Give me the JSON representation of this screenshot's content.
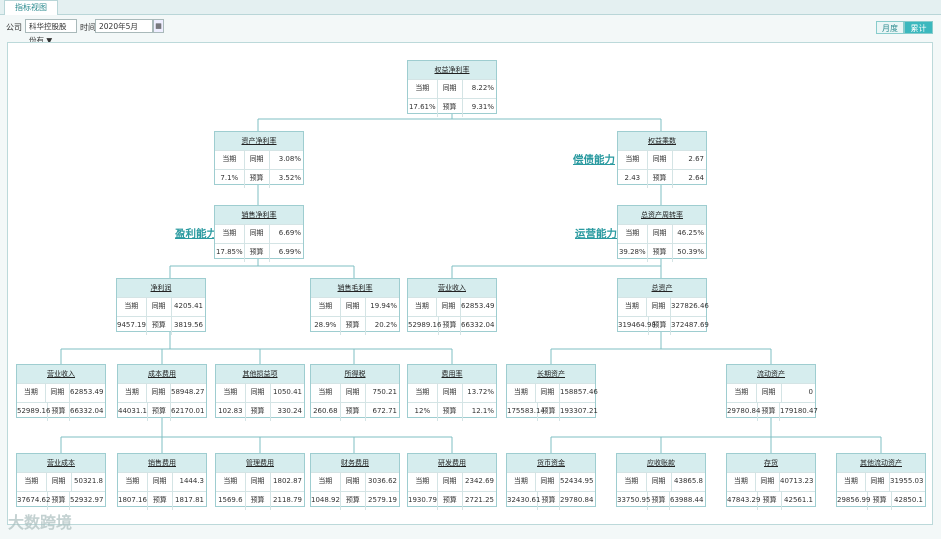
{
  "tab": "指标视图",
  "toolbar": {
    "company_label": "公司",
    "company_value": "科华控股股份有 ▼",
    "time_label": "时间",
    "time_value": "2020年5月",
    "calendar_glyph": "▦",
    "monthly_label": "月度",
    "cumulative_label": "累计"
  },
  "sections": {
    "solvency": "偿债能力",
    "profitability": "盈利能力",
    "operating": "运营能力"
  },
  "logo_text": "大数跨境",
  "nodes": {
    "roe": {
      "title": "权益净利率",
      "r1": [
        "当期",
        "同期",
        "8.22%"
      ],
      "r2": [
        "17.61%",
        "预算",
        "9.31%"
      ]
    },
    "roa": {
      "title": "资产净利率",
      "r1": [
        "当期",
        "同期",
        "3.08%"
      ],
      "r2": [
        "7.1%",
        "预算",
        "3.52%"
      ]
    },
    "em": {
      "title": "权益乘数",
      "r1": [
        "当期",
        "同期",
        "2.67"
      ],
      "r2": [
        "2.43",
        "预算",
        "2.64"
      ]
    },
    "npm": {
      "title": "销售净利率",
      "r1": [
        "当期",
        "同期",
        "6.69%"
      ],
      "r2": [
        "17.85%",
        "预算",
        "6.99%"
      ]
    },
    "tat": {
      "title": "总资产周转率",
      "r1": [
        "当期",
        "同期",
        "46.25%"
      ],
      "r2": [
        "39.28%",
        "预算",
        "50.39%"
      ]
    },
    "np": {
      "title": "净利润",
      "r1": [
        "当期",
        "同期",
        "4205.41"
      ],
      "r2": [
        "9457.19",
        "预算",
        "3819.56"
      ]
    },
    "gm": {
      "title": "销售毛利率",
      "r1": [
        "当期",
        "同期",
        "19.94%"
      ],
      "r2": [
        "28.9%",
        "预算",
        "20.2%"
      ]
    },
    "rev1": {
      "title": "营业收入",
      "r1": [
        "当期",
        "同期",
        "62853.49"
      ],
      "r2": [
        "52989.16",
        "预算",
        "66332.04"
      ]
    },
    "ta": {
      "title": "总资产",
      "r1": [
        "当期",
        "同期",
        "327826.46"
      ],
      "r2": [
        "319464.98",
        "预算",
        "372487.69"
      ]
    },
    "rev2": {
      "title": "营业收入",
      "r1": [
        "当期",
        "同期",
        "62853.49"
      ],
      "r2": [
        "52989.16",
        "预算",
        "66332.04"
      ]
    },
    "cost": {
      "title": "成本费用",
      "r1": [
        "当期",
        "同期",
        "58948.27"
      ],
      "r2": [
        "44031.1",
        "预算",
        "62170.01"
      ]
    },
    "other": {
      "title": "其他损益项",
      "r1": [
        "当期",
        "同期",
        "1050.41"
      ],
      "r2": [
        "102.83",
        "预算",
        "330.24"
      ]
    },
    "tax": {
      "title": "所得税",
      "r1": [
        "当期",
        "同期",
        "750.21"
      ],
      "r2": [
        "260.68",
        "预算",
        "672.71"
      ]
    },
    "fee": {
      "title": "费用率",
      "r1": [
        "当期",
        "同期",
        "13.72%"
      ],
      "r2": [
        "12%",
        "预算",
        "12.1%"
      ]
    },
    "nca": {
      "title": "长期资产",
      "r1": [
        "当期",
        "同期",
        "158857.46"
      ],
      "r2": [
        "175583.14",
        "预算",
        "193307.21"
      ]
    },
    "ca": {
      "title": "流动资产",
      "r1": [
        "当期",
        "同期",
        "0"
      ],
      "r2": [
        "29780.84",
        "预算",
        "179180.47"
      ]
    },
    "opcost": {
      "title": "营业成本",
      "r1": [
        "当期",
        "同期",
        "50321.8"
      ],
      "r2": [
        "37674.62",
        "预算",
        "52932.97"
      ]
    },
    "sellexp": {
      "title": "销售费用",
      "r1": [
        "当期",
        "同期",
        "1444.3"
      ],
      "r2": [
        "1807.16",
        "预算",
        "1817.81"
      ]
    },
    "admexp": {
      "title": "管理费用",
      "r1": [
        "当期",
        "同期",
        "1802.87"
      ],
      "r2": [
        "1569.6",
        "预算",
        "2118.79"
      ]
    },
    "finexp": {
      "title": "财务费用",
      "r1": [
        "当期",
        "同期",
        "3036.62"
      ],
      "r2": [
        "1048.92",
        "预算",
        "2579.19"
      ]
    },
    "rdexp": {
      "title": "研发费用",
      "r1": [
        "当期",
        "同期",
        "2342.69"
      ],
      "r2": [
        "1930.79",
        "预算",
        "2721.25"
      ]
    },
    "cash": {
      "title": "货币资金",
      "r1": [
        "当期",
        "同期",
        "52434.95"
      ],
      "r2": [
        "32430.61",
        "预算",
        "29780.84"
      ]
    },
    "ar": {
      "title": "应收账款",
      "r1": [
        "当期",
        "同期",
        "43865.8"
      ],
      "r2": [
        "33750.95",
        "预算",
        "63988.44"
      ]
    },
    "inv": {
      "title": "存货",
      "r1": [
        "当期",
        "同期",
        "40713.23"
      ],
      "r2": [
        "47843.29",
        "预算",
        "42561.1"
      ]
    },
    "oca": {
      "title": "其他流动资产",
      "r1": [
        "当期",
        "同期",
        "31955.03"
      ],
      "r2": [
        "29856.99",
        "预算",
        "42850.1"
      ]
    }
  }
}
